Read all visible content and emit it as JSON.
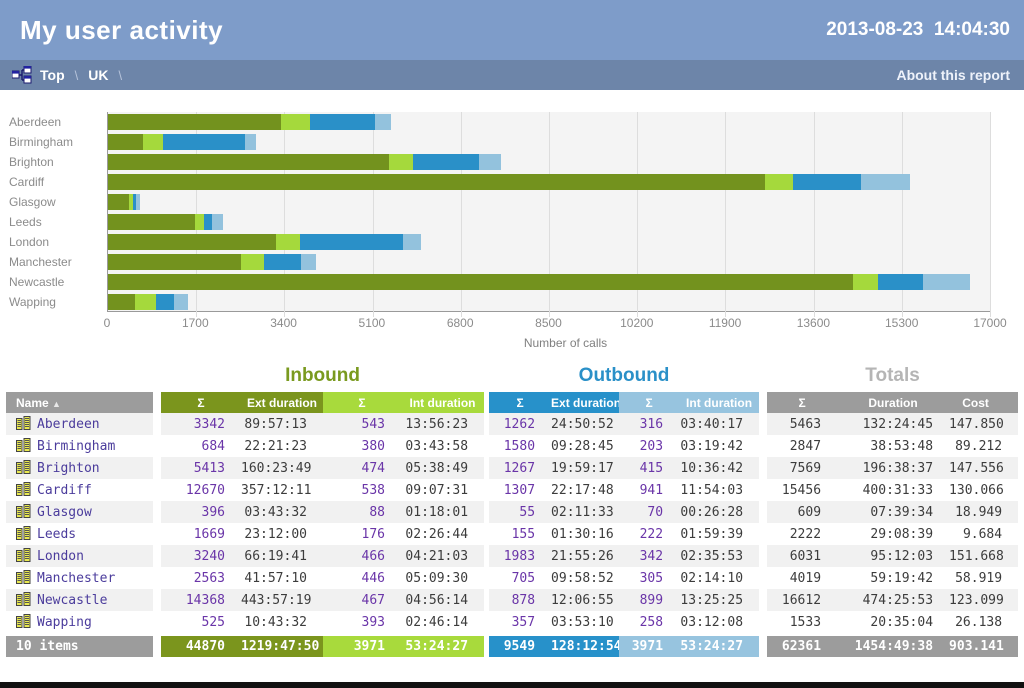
{
  "header": {
    "title": "My user activity",
    "datetime": "2013-08-23  14:04:30"
  },
  "breadcrumb": {
    "items": [
      "Top",
      "UK"
    ],
    "separator": "\\",
    "about_label": "About this report"
  },
  "chart_data": {
    "type": "bar",
    "stacked": true,
    "orientation": "horizontal",
    "categories": [
      "Aberdeen",
      "Birmingham",
      "Brighton",
      "Cardiff",
      "Glasgow",
      "Leeds",
      "London",
      "Manchester",
      "Newcastle",
      "Wapping"
    ],
    "series": [
      {
        "name": "Inbound Ext",
        "color": "#73921e",
        "values": [
          3342,
          684,
          5413,
          12670,
          396,
          1669,
          3240,
          2563,
          14368,
          525
        ]
      },
      {
        "name": "Inbound Int",
        "color": "#a5d93c",
        "values": [
          543,
          380,
          474,
          538,
          88,
          176,
          466,
          446,
          467,
          393
        ]
      },
      {
        "name": "Outbound Ext",
        "color": "#2a90c8",
        "values": [
          1262,
          1580,
          1267,
          1307,
          55,
          155,
          1983,
          705,
          878,
          357
        ]
      },
      {
        "name": "Outbound Int",
        "color": "#93c2dd",
        "values": [
          316,
          203,
          415,
          941,
          70,
          222,
          342,
          305,
          899,
          258
        ]
      }
    ],
    "xlabel": "Number of calls",
    "xlim": [
      0,
      17000
    ],
    "xticks": [
      0,
      1700,
      3400,
      5100,
      6800,
      8500,
      10200,
      11900,
      13600,
      15300,
      17000
    ],
    "grid": true,
    "legend": false,
    "plot_bg": "#f4f4f4"
  },
  "table": {
    "groups": [
      {
        "label": "Inbound"
      },
      {
        "label": "Outbound"
      },
      {
        "label": "Totals"
      }
    ],
    "columns": {
      "name": "Name",
      "sort_arrow": "▲",
      "sum": "Σ",
      "ext": "Ext duration",
      "int": "Int duration",
      "duration": "Duration",
      "cost": "Cost"
    },
    "rows": [
      {
        "name": "Aberdeen",
        "in_sum": "3342",
        "in_ext": "89:57:13",
        "in_int_sum": "543",
        "in_int": "13:56:23",
        "out_sum": "1262",
        "out_ext": "24:50:52",
        "out_int_sum": "316",
        "out_int": "03:40:17",
        "tot_sum": "5463",
        "tot_dur": "132:24:45",
        "cost": "147.850"
      },
      {
        "name": "Birmingham",
        "in_sum": "684",
        "in_ext": "22:21:23",
        "in_int_sum": "380",
        "in_int": "03:43:58",
        "out_sum": "1580",
        "out_ext": "09:28:45",
        "out_int_sum": "203",
        "out_int": "03:19:42",
        "tot_sum": "2847",
        "tot_dur": "38:53:48",
        "cost": "89.212"
      },
      {
        "name": "Brighton",
        "in_sum": "5413",
        "in_ext": "160:23:49",
        "in_int_sum": "474",
        "in_int": "05:38:49",
        "out_sum": "1267",
        "out_ext": "19:59:17",
        "out_int_sum": "415",
        "out_int": "10:36:42",
        "tot_sum": "7569",
        "tot_dur": "196:38:37",
        "cost": "147.556"
      },
      {
        "name": "Cardiff",
        "in_sum": "12670",
        "in_ext": "357:12:11",
        "in_int_sum": "538",
        "in_int": "09:07:31",
        "out_sum": "1307",
        "out_ext": "22:17:48",
        "out_int_sum": "941",
        "out_int": "11:54:03",
        "tot_sum": "15456",
        "tot_dur": "400:31:33",
        "cost": "130.066"
      },
      {
        "name": "Glasgow",
        "in_sum": "396",
        "in_ext": "03:43:32",
        "in_int_sum": "88",
        "in_int": "01:18:01",
        "out_sum": "55",
        "out_ext": "02:11:33",
        "out_int_sum": "70",
        "out_int": "00:26:28",
        "tot_sum": "609",
        "tot_dur": "07:39:34",
        "cost": "18.949"
      },
      {
        "name": "Leeds",
        "in_sum": "1669",
        "in_ext": "23:12:00",
        "in_int_sum": "176",
        "in_int": "02:26:44",
        "out_sum": "155",
        "out_ext": "01:30:16",
        "out_int_sum": "222",
        "out_int": "01:59:39",
        "tot_sum": "2222",
        "tot_dur": "29:08:39",
        "cost": "9.684"
      },
      {
        "name": "London",
        "in_sum": "3240",
        "in_ext": "66:19:41",
        "in_int_sum": "466",
        "in_int": "04:21:03",
        "out_sum": "1983",
        "out_ext": "21:55:26",
        "out_int_sum": "342",
        "out_int": "02:35:53",
        "tot_sum": "6031",
        "tot_dur": "95:12:03",
        "cost": "151.668"
      },
      {
        "name": "Manchester",
        "in_sum": "2563",
        "in_ext": "41:57:10",
        "in_int_sum": "446",
        "in_int": "05:09:30",
        "out_sum": "705",
        "out_ext": "09:58:52",
        "out_int_sum": "305",
        "out_int": "02:14:10",
        "tot_sum": "4019",
        "tot_dur": "59:19:42",
        "cost": "58.919"
      },
      {
        "name": "Newcastle",
        "in_sum": "14368",
        "in_ext": "443:57:19",
        "in_int_sum": "467",
        "in_int": "04:56:14",
        "out_sum": "878",
        "out_ext": "12:06:55",
        "out_int_sum": "899",
        "out_int": "13:25:25",
        "tot_sum": "16612",
        "tot_dur": "474:25:53",
        "cost": "123.099"
      },
      {
        "name": "Wapping",
        "in_sum": "525",
        "in_ext": "10:43:32",
        "in_int_sum": "393",
        "in_int": "02:46:14",
        "out_sum": "357",
        "out_ext": "03:53:10",
        "out_int_sum": "258",
        "out_int": "03:12:08",
        "tot_sum": "1533",
        "tot_dur": "20:35:04",
        "cost": "26.138"
      }
    ],
    "footer": {
      "items": "10 items",
      "in_sum": "44870",
      "in_ext": "1219:47:50",
      "in_int_sum": "3971",
      "in_int": "53:24:27",
      "out_sum": "9549",
      "out_ext": "128:12:54",
      "out_int_sum": "3971",
      "out_int": "53:24:27",
      "tot_sum": "62361",
      "tot_dur": "1454:49:38",
      "cost": "903.141"
    }
  },
  "colors": {
    "header_bg": "#7e9cc9",
    "crumb_bg": "#6d85a9",
    "inbound_ext": "#73921e",
    "inbound_int": "#a5d93c",
    "outbound_ext": "#2a90c8",
    "outbound_int": "#93c2dd",
    "neutral_gray": "#9c9c9c"
  }
}
